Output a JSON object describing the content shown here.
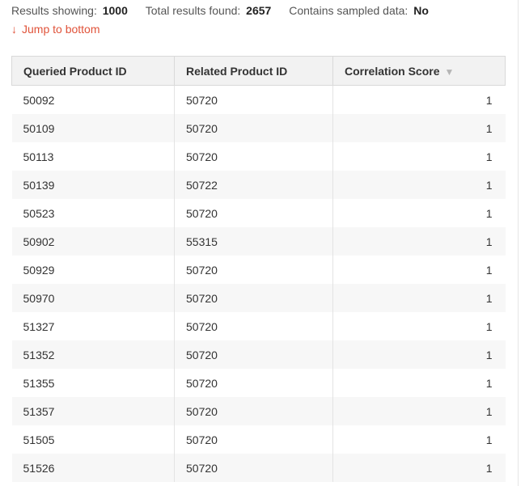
{
  "summary": {
    "results_showing_label": "Results showing:",
    "results_showing_value": "1000",
    "total_found_label": "Total results found:",
    "total_found_value": "2657",
    "sampled_label": "Contains sampled data:",
    "sampled_value": "No"
  },
  "jump": {
    "arrow": "↓",
    "label": "Jump to bottom"
  },
  "table": {
    "headers": [
      "Queried Product ID",
      "Related Product ID",
      "Correlation Score"
    ],
    "sort_icon": "▼",
    "rows": [
      [
        "50092",
        "50720",
        "1"
      ],
      [
        "50109",
        "50720",
        "1"
      ],
      [
        "50113",
        "50720",
        "1"
      ],
      [
        "50139",
        "50722",
        "1"
      ],
      [
        "50523",
        "50720",
        "1"
      ],
      [
        "50902",
        "55315",
        "1"
      ],
      [
        "50929",
        "50720",
        "1"
      ],
      [
        "50970",
        "50720",
        "1"
      ],
      [
        "51327",
        "50720",
        "1"
      ],
      [
        "51352",
        "50720",
        "1"
      ],
      [
        "51355",
        "50720",
        "1"
      ],
      [
        "51357",
        "50720",
        "1"
      ],
      [
        "51505",
        "50720",
        "1"
      ],
      [
        "51526",
        "50720",
        "1"
      ]
    ]
  },
  "colors": {
    "accent": "#e0533a",
    "header_bg": "#f2f2f2",
    "stripe_bg": "#f7f7f7"
  }
}
